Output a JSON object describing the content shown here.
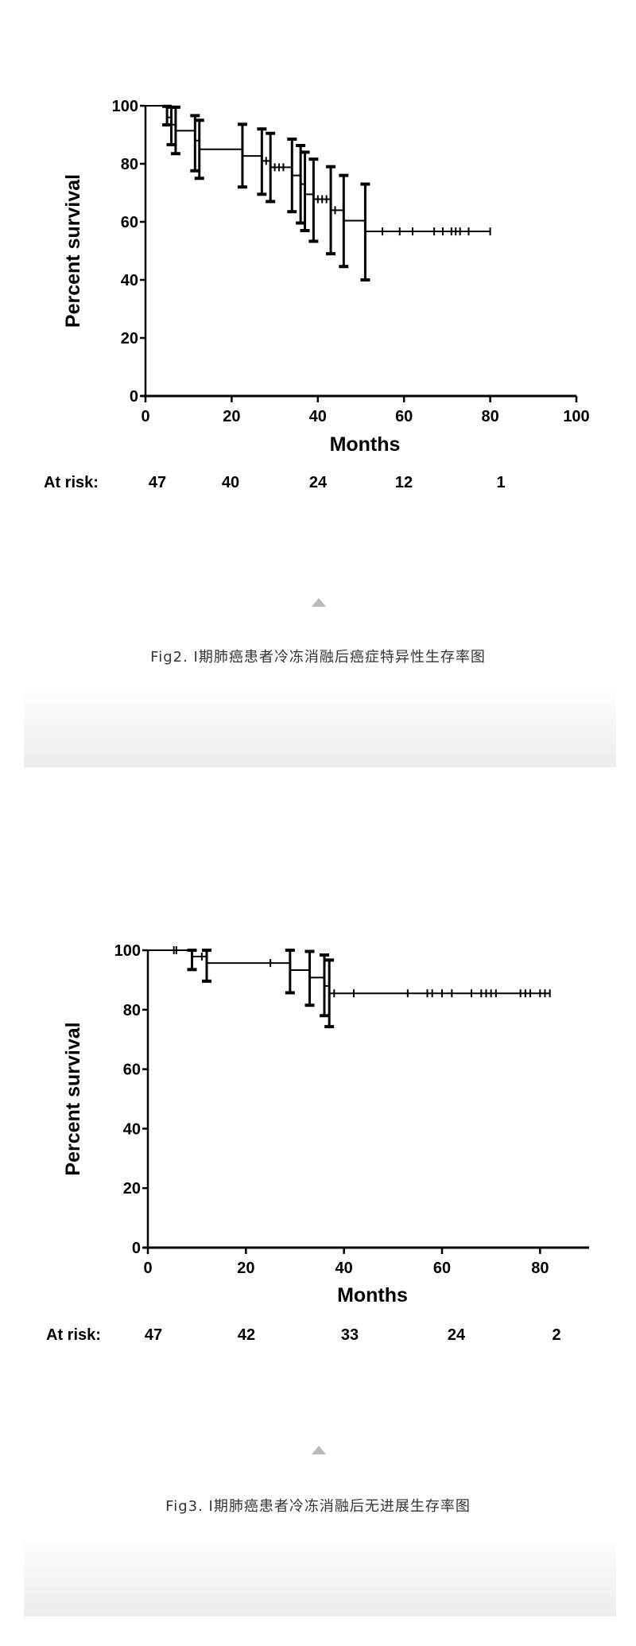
{
  "chart_data": [
    {
      "type": "line",
      "subtype": "kaplan-meier",
      "title": "",
      "xlabel": "Months",
      "ylabel": "Percent survival",
      "xlim": [
        0,
        100
      ],
      "ylim": [
        0,
        100
      ],
      "xticks": [
        "0",
        "20",
        "40",
        "60",
        "80",
        "100"
      ],
      "yticks": [
        "0",
        "20",
        "40",
        "60",
        "80",
        "100"
      ],
      "grid": false,
      "steps": [
        [
          0,
          100
        ],
        [
          5,
          96
        ],
        [
          6,
          93.5
        ],
        [
          7,
          91.4
        ],
        [
          11.5,
          88
        ],
        [
          12.5,
          85
        ],
        [
          22.5,
          82.7
        ],
        [
          27,
          81
        ],
        [
          29,
          78.8
        ],
        [
          34,
          76
        ],
        [
          36,
          73
        ],
        [
          37,
          69.5
        ],
        [
          39,
          67.8
        ],
        [
          43,
          64
        ],
        [
          46,
          60.4
        ],
        [
          51,
          56.7
        ],
        [
          80,
          56.7
        ]
      ],
      "censored": [
        [
          28,
          81
        ],
        [
          30,
          78.8
        ],
        [
          31,
          78.8
        ],
        [
          32,
          78.8
        ],
        [
          40,
          67.8
        ],
        [
          41,
          67.8
        ],
        [
          42,
          67.8
        ],
        [
          44,
          64
        ],
        [
          55,
          56.7
        ],
        [
          59,
          56.7
        ],
        [
          62,
          56.7
        ],
        [
          67,
          56.7
        ],
        [
          69,
          56.7
        ],
        [
          71,
          56.7
        ],
        [
          72,
          56.7
        ],
        [
          73,
          56.7
        ],
        [
          75,
          56.7
        ],
        [
          80,
          56.7
        ]
      ],
      "error_bars": [
        [
          5,
          93.4,
          99.8
        ],
        [
          6,
          86.6,
          99.5
        ],
        [
          7,
          83.5,
          99.5
        ],
        [
          11.5,
          77.6,
          96.6
        ],
        [
          12.5,
          75,
          95
        ],
        [
          22.5,
          72,
          93.6
        ],
        [
          27,
          69.5,
          92
        ],
        [
          29,
          67,
          90.5
        ],
        [
          34,
          63.5,
          88.5
        ],
        [
          36,
          59.6,
          86.3
        ],
        [
          37,
          57,
          84
        ],
        [
          39,
          53.3,
          81.6
        ],
        [
          43,
          49,
          79
        ],
        [
          46,
          44.6,
          76
        ],
        [
          51,
          40,
          73
        ]
      ],
      "at_risk": {
        "label": "At risk:",
        "values": [
          "47",
          "40",
          "24",
          "12",
          "1"
        ]
      }
    },
    {
      "type": "line",
      "subtype": "kaplan-meier",
      "title": "",
      "xlabel": "Months",
      "ylabel": "Percent survival",
      "xlim": [
        0,
        90
      ],
      "ylim": [
        0,
        100
      ],
      "xticks": [
        "0",
        "20",
        "40",
        "60",
        "80"
      ],
      "yticks": [
        "0",
        "20",
        "40",
        "60",
        "80",
        "100"
      ],
      "grid": false,
      "steps": [
        [
          0,
          100
        ],
        [
          9,
          97.9
        ],
        [
          12,
          95.7
        ],
        [
          29,
          93.3
        ],
        [
          33,
          90.8
        ],
        [
          36,
          88
        ],
        [
          37,
          85.5
        ],
        [
          82,
          85.5
        ]
      ],
      "censored": [
        [
          5.3,
          100
        ],
        [
          5.8,
          100
        ],
        [
          11,
          97.9
        ],
        [
          25,
          95.7
        ],
        [
          38,
          85.5
        ],
        [
          42,
          85.5
        ],
        [
          53,
          85.5
        ],
        [
          57,
          85.5
        ],
        [
          58,
          85.5
        ],
        [
          60,
          85.5
        ],
        [
          62,
          85.5
        ],
        [
          66,
          85.5
        ],
        [
          68,
          85.5
        ],
        [
          69,
          85.5
        ],
        [
          70,
          85.5
        ],
        [
          71,
          85.5
        ],
        [
          76,
          85.5
        ],
        [
          77,
          85.5
        ],
        [
          78,
          85.5
        ],
        [
          80,
          85.5
        ],
        [
          81,
          85.5
        ],
        [
          82,
          85.5
        ]
      ],
      "error_bars": [
        [
          9,
          93.5,
          100
        ],
        [
          12,
          89.6,
          100
        ],
        [
          29,
          85.7,
          100
        ],
        [
          33,
          81.5,
          99.6
        ],
        [
          36,
          78,
          98.4
        ],
        [
          37,
          74.3,
          96.7
        ]
      ],
      "at_risk": {
        "label": "At risk:",
        "values": [
          "47",
          "42",
          "33",
          "24",
          "2"
        ]
      }
    }
  ],
  "figures": [
    {
      "caption": "Fig2. I期肺癌患者冷冻消融后癌症特异性生存率图"
    },
    {
      "caption": "Fig3. I期肺癌患者冷冻消融后无进展生存率图"
    }
  ],
  "colors": {
    "line": "#000000",
    "caption": "#333333",
    "triangle": "#bbbbbb",
    "shade": "#ececec"
  }
}
